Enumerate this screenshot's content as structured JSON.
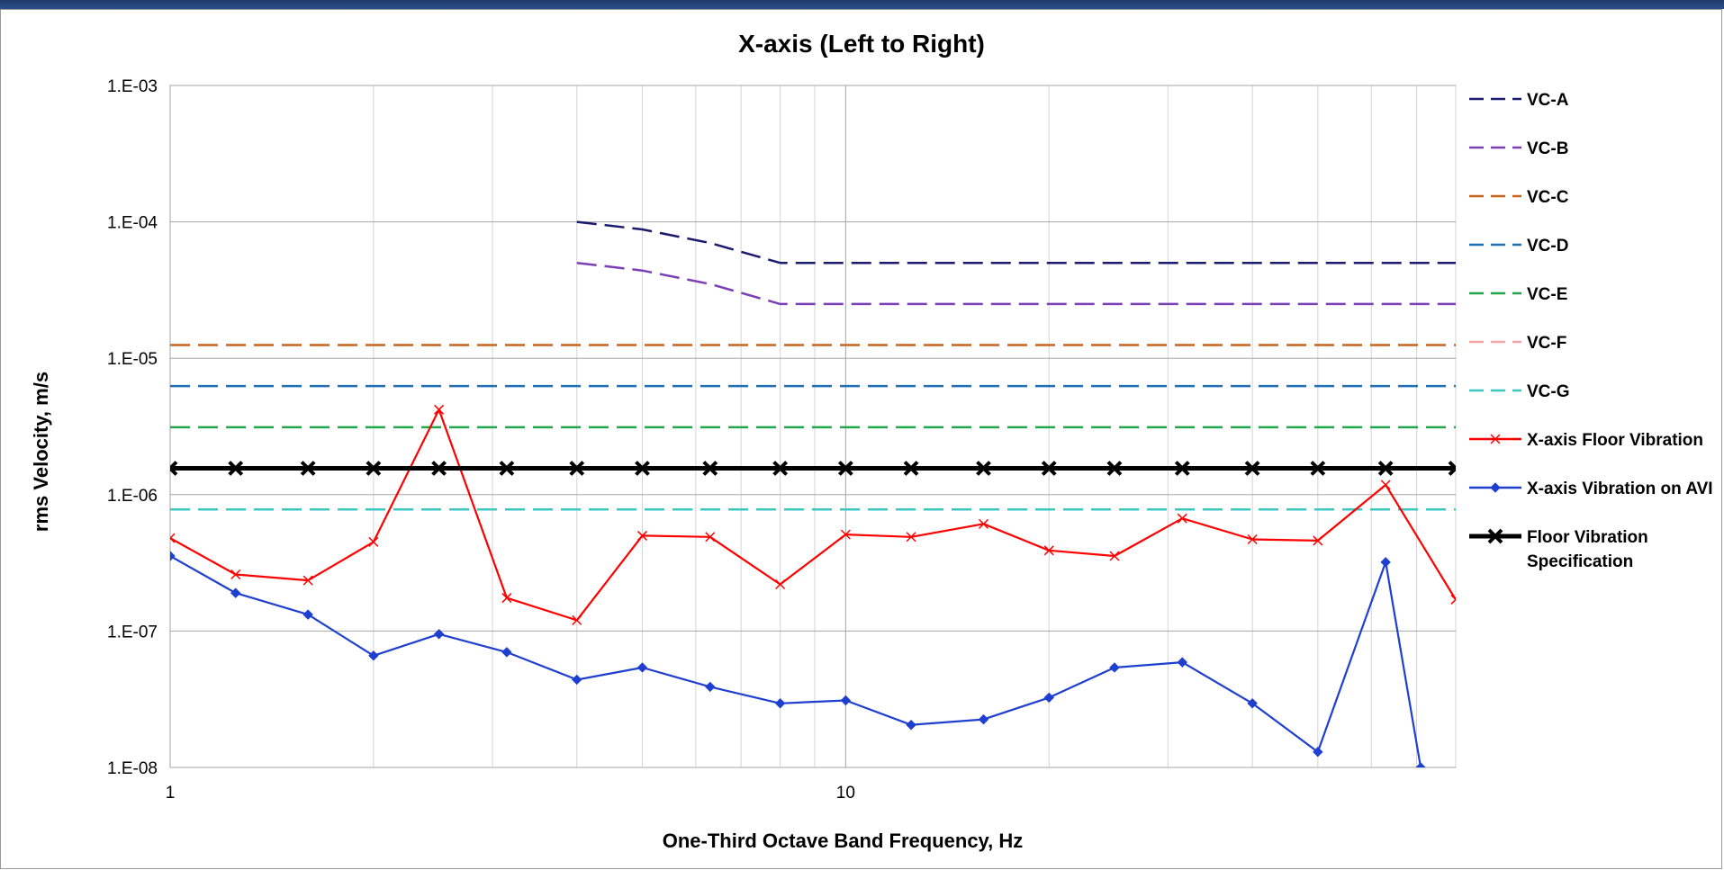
{
  "chart_data": {
    "type": "line",
    "title": "X-axis (Left to Right)",
    "xlabel": "One-Third Octave Band Frequency, Hz",
    "ylabel": "rms Velocity, m/s",
    "x_scale": "log",
    "y_scale": "log",
    "xlim": [
      1,
      80
    ],
    "ylim": [
      1e-08,
      0.001
    ],
    "grid": true,
    "legend_position": "right",
    "x_ticks": [
      {
        "value": 1,
        "label": "1"
      },
      {
        "value": 10,
        "label": "10"
      }
    ],
    "y_ticks": [
      {
        "value": 0.001,
        "label": "1.E-03"
      },
      {
        "value": 0.0001,
        "label": "1.E-04"
      },
      {
        "value": 1e-05,
        "label": "1.E-05"
      },
      {
        "value": 1e-06,
        "label": "1.E-06"
      },
      {
        "value": 1e-07,
        "label": "1.E-07"
      },
      {
        "value": 1e-08,
        "label": "1.E-08"
      }
    ],
    "series": [
      {
        "name": "VC-A",
        "color": "#1a1a6e",
        "style": "dashed",
        "marker": "none",
        "x": [
          4,
          5,
          6.3,
          8,
          10,
          12.5,
          16,
          20,
          25,
          31.5,
          40,
          50,
          63,
          80
        ],
        "y": [
          0.0001,
          8.8e-05,
          7e-05,
          5e-05,
          5e-05,
          5e-05,
          5e-05,
          5e-05,
          5e-05,
          5e-05,
          5e-05,
          5e-05,
          5e-05,
          5e-05
        ]
      },
      {
        "name": "VC-B",
        "color": "#7b3fb5",
        "style": "dashed",
        "marker": "none",
        "x": [
          4,
          5,
          6.3,
          8,
          10,
          12.5,
          16,
          20,
          25,
          31.5,
          40,
          50,
          63,
          80
        ],
        "y": [
          5e-05,
          4.4e-05,
          3.5e-05,
          2.5e-05,
          2.5e-05,
          2.5e-05,
          2.5e-05,
          2.5e-05,
          2.5e-05,
          2.5e-05,
          2.5e-05,
          2.5e-05,
          2.5e-05,
          2.5e-05
        ]
      },
      {
        "name": "VC-C",
        "color": "#c8641e",
        "style": "dashed",
        "marker": "none",
        "x": [
          1,
          80
        ],
        "y": [
          1.25e-05,
          1.25e-05
        ]
      },
      {
        "name": "VC-D",
        "color": "#1f6fb5",
        "style": "dashed",
        "marker": "none",
        "x": [
          1,
          80
        ],
        "y": [
          6.25e-06,
          6.25e-06
        ]
      },
      {
        "name": "VC-E",
        "color": "#22a64a",
        "style": "dashed",
        "marker": "none",
        "x": [
          1,
          80
        ],
        "y": [
          3.12e-06,
          3.12e-06
        ]
      },
      {
        "name": "VC-F",
        "color": "#f4a6a6",
        "style": "dashed",
        "marker": "none",
        "x": [
          1,
          80
        ],
        "y": [
          1.56e-06,
          1.56e-06
        ]
      },
      {
        "name": "VC-G",
        "color": "#3cc8c0",
        "style": "dashed",
        "marker": "none",
        "x": [
          1,
          80
        ],
        "y": [
          7.8e-07,
          7.8e-07
        ]
      },
      {
        "name": "X-axis Floor Vibration",
        "color": "#ff0000",
        "style": "solid",
        "marker": "x",
        "x": [
          1,
          1.25,
          1.6,
          2,
          2.5,
          3.15,
          4,
          5,
          6.3,
          8,
          10,
          12.5,
          16,
          20,
          25,
          31.5,
          40,
          50,
          63,
          80
        ],
        "y": [
          4.8e-07,
          2.6e-07,
          2.35e-07,
          4.5e-07,
          4.2e-06,
          1.75e-07,
          1.2e-07,
          5e-07,
          4.9e-07,
          2.2e-07,
          5.1e-07,
          4.9e-07,
          6.1e-07,
          3.9e-07,
          3.55e-07,
          6.7e-07,
          4.7e-07,
          4.6e-07,
          1.18e-06,
          1.7e-07
        ]
      },
      {
        "name": "X-axis Vibration on AVI",
        "color": "#1f3fd0",
        "style": "solid",
        "marker": "diamond",
        "x": [
          1,
          1.25,
          1.6,
          2,
          2.5,
          3.15,
          4,
          5,
          6.3,
          8,
          10,
          12.5,
          16,
          20,
          25,
          31.5,
          40,
          50,
          63,
          71
        ],
        "y": [
          3.55e-07,
          1.9e-07,
          1.32e-07,
          6.6e-08,
          9.5e-08,
          7e-08,
          4.4e-08,
          5.4e-08,
          3.9e-08,
          2.95e-08,
          3.1e-08,
          2.05e-08,
          2.25e-08,
          3.25e-08,
          5.4e-08,
          5.9e-08,
          2.95e-08,
          1.3e-08,
          3.2e-07,
          1e-08
        ]
      },
      {
        "name": "Floor Vibration Specification",
        "color": "#000000",
        "style": "solid",
        "marker": "star",
        "x": [
          1,
          1.25,
          1.6,
          2,
          2.5,
          3.15,
          4,
          5,
          6.3,
          8,
          10,
          12.5,
          16,
          20,
          25,
          31.5,
          40,
          50,
          63,
          80
        ],
        "y": [
          1.56e-06,
          1.56e-06,
          1.56e-06,
          1.56e-06,
          1.56e-06,
          1.56e-06,
          1.56e-06,
          1.56e-06,
          1.56e-06,
          1.56e-06,
          1.56e-06,
          1.56e-06,
          1.56e-06,
          1.56e-06,
          1.56e-06,
          1.56e-06,
          1.56e-06,
          1.56e-06,
          1.56e-06,
          1.56e-06
        ]
      }
    ],
    "legend": [
      {
        "label": "VC-A",
        "color": "#1a1a6e",
        "style": "dashed",
        "marker": "none"
      },
      {
        "label": "VC-B",
        "color": "#7b3fb5",
        "style": "dashed",
        "marker": "none"
      },
      {
        "label": "VC-C",
        "color": "#c8641e",
        "style": "dashed",
        "marker": "none"
      },
      {
        "label": "VC-D",
        "color": "#1f6fb5",
        "style": "dashed",
        "marker": "none"
      },
      {
        "label": "VC-E",
        "color": "#22a64a",
        "style": "dashed",
        "marker": "none"
      },
      {
        "label": "VC-F",
        "color": "#f4a6a6",
        "style": "dashed",
        "marker": "none"
      },
      {
        "label": "VC-G",
        "color": "#3cc8c0",
        "style": "dashed",
        "marker": "none"
      },
      {
        "label": "X-axis Floor Vibration",
        "color": "#ff0000",
        "style": "solid",
        "marker": "x"
      },
      {
        "label": "X-axis Vibration on AVI",
        "color": "#1f3fd0",
        "style": "solid",
        "marker": "diamond"
      },
      {
        "label": "Floor Vibration\nSpecification",
        "color": "#000000",
        "style": "solid",
        "marker": "star"
      }
    ]
  }
}
